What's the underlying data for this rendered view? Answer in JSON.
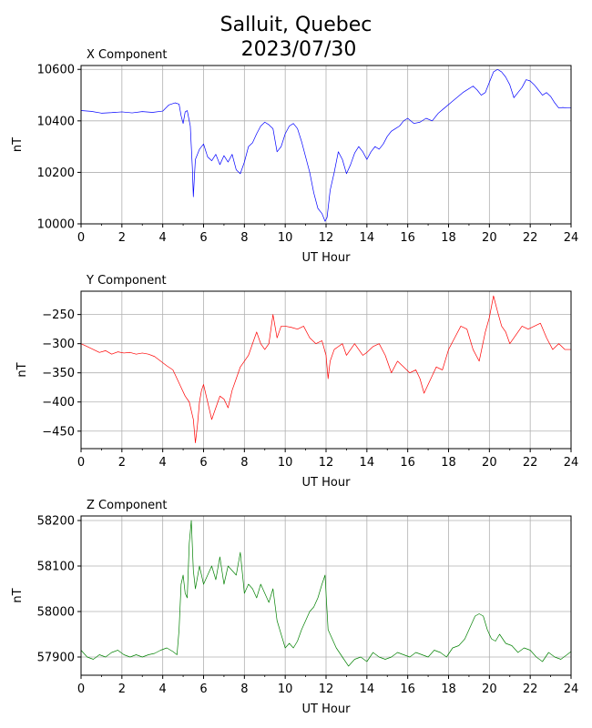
{
  "figure": {
    "title_line1": "Salluit, Quebec",
    "title_line2": "2023/07/30"
  },
  "chart_data": [
    {
      "type": "line",
      "title": "X Component",
      "xlabel": "UT Hour",
      "ylabel": "nT",
      "xlim": [
        0,
        24
      ],
      "ylim": [
        10000,
        10615
      ],
      "xticks": [
        0,
        2,
        4,
        6,
        8,
        10,
        12,
        14,
        16,
        18,
        20,
        22,
        24
      ],
      "yticks": [
        10000,
        10200,
        10400,
        10600
      ],
      "ytick_labels": [
        "10000",
        "10200",
        "10400",
        "10600"
      ],
      "grid": true,
      "color": "#0000ff",
      "x": [
        0,
        0.5,
        1,
        1.5,
        2,
        2.5,
        3,
        3.5,
        4,
        4.3,
        4.6,
        4.8,
        4.9,
        5.0,
        5.1,
        5.2,
        5.35,
        5.45,
        5.5,
        5.55,
        5.6,
        5.7,
        5.8,
        6.0,
        6.2,
        6.4,
        6.6,
        6.8,
        7.0,
        7.2,
        7.4,
        7.6,
        7.8,
        8.0,
        8.2,
        8.4,
        8.6,
        8.8,
        9.0,
        9.2,
        9.4,
        9.6,
        9.8,
        10.0,
        10.2,
        10.4,
        10.6,
        10.8,
        11.0,
        11.2,
        11.4,
        11.6,
        11.8,
        11.95,
        12.05,
        12.2,
        12.4,
        12.6,
        12.8,
        13.0,
        13.2,
        13.4,
        13.6,
        13.8,
        14.0,
        14.2,
        14.4,
        14.6,
        14.8,
        15.0,
        15.2,
        15.4,
        15.6,
        15.8,
        16.0,
        16.3,
        16.6,
        16.9,
        17.2,
        17.5,
        17.8,
        18.1,
        18.4,
        18.7,
        19.0,
        19.2,
        19.4,
        19.6,
        19.8,
        20.0,
        20.2,
        20.4,
        20.6,
        20.8,
        21.0,
        21.2,
        21.4,
        21.6,
        21.8,
        22.0,
        22.2,
        22.4,
        22.6,
        22.8,
        23.0,
        23.2,
        23.4,
        23.6,
        23.8,
        24.0
      ],
      "y": [
        10440,
        10437,
        10430,
        10432,
        10435,
        10431,
        10436,
        10433,
        10438,
        10462,
        10470,
        10465,
        10420,
        10390,
        10435,
        10440,
        10380,
        10220,
        10105,
        10180,
        10250,
        10270,
        10290,
        10310,
        10260,
        10245,
        10270,
        10230,
        10265,
        10240,
        10270,
        10210,
        10195,
        10240,
        10300,
        10315,
        10350,
        10380,
        10395,
        10385,
        10370,
        10280,
        10300,
        10350,
        10380,
        10390,
        10370,
        10320,
        10260,
        10200,
        10120,
        10060,
        10040,
        10010,
        10025,
        10130,
        10200,
        10280,
        10250,
        10195,
        10230,
        10275,
        10300,
        10280,
        10250,
        10280,
        10300,
        10290,
        10310,
        10340,
        10360,
        10370,
        10380,
        10400,
        10410,
        10390,
        10395,
        10410,
        10400,
        10430,
        10450,
        10470,
        10490,
        10510,
        10525,
        10535,
        10520,
        10500,
        10510,
        10550,
        10590,
        10600,
        10590,
        10570,
        10540,
        10490,
        10510,
        10530,
        10560,
        10555,
        10540,
        10520,
        10500,
        10510,
        10495,
        10470,
        10450,
        10452,
        10450,
        10450
      ]
    },
    {
      "type": "line",
      "title": "Y Component",
      "xlabel": "UT Hour",
      "ylabel": "nT",
      "xlim": [
        0,
        24
      ],
      "ylim": [
        -480,
        -210
      ],
      "xticks": [
        0,
        2,
        4,
        6,
        8,
        10,
        12,
        14,
        16,
        18,
        20,
        22,
        24
      ],
      "yticks": [
        -450,
        -400,
        -350,
        -300,
        -250
      ],
      "ytick_labels": [
        "−450",
        "−400",
        "−350",
        "−300",
        "−250"
      ],
      "grid": true,
      "color": "#ff0000",
      "x": [
        0,
        0.3,
        0.6,
        0.9,
        1.2,
        1.5,
        1.8,
        2.1,
        2.4,
        2.7,
        3.0,
        3.3,
        3.6,
        3.9,
        4.2,
        4.5,
        4.7,
        4.9,
        5.1,
        5.3,
        5.5,
        5.6,
        5.7,
        5.8,
        5.9,
        6.0,
        6.2,
        6.4,
        6.6,
        6.8,
        7.0,
        7.2,
        7.4,
        7.6,
        7.8,
        8.0,
        8.2,
        8.4,
        8.6,
        8.8,
        9.0,
        9.2,
        9.4,
        9.6,
        9.8,
        10.0,
        10.3,
        10.6,
        10.9,
        11.2,
        11.5,
        11.8,
        12.0,
        12.1,
        12.2,
        12.4,
        12.6,
        12.8,
        13.0,
        13.2,
        13.4,
        13.6,
        13.8,
        14.0,
        14.3,
        14.6,
        14.9,
        15.2,
        15.5,
        15.8,
        16.1,
        16.4,
        16.6,
        16.8,
        17.0,
        17.2,
        17.4,
        17.7,
        18.0,
        18.3,
        18.6,
        18.9,
        19.2,
        19.5,
        19.8,
        20.0,
        20.2,
        20.4,
        20.6,
        20.8,
        21.0,
        21.3,
        21.6,
        21.9,
        22.2,
        22.5,
        22.8,
        23.1,
        23.4,
        23.7,
        24.0
      ],
      "y": [
        -300,
        -305,
        -310,
        -315,
        -312,
        -318,
        -314,
        -316,
        -315,
        -318,
        -316,
        -318,
        -322,
        -330,
        -338,
        -345,
        -360,
        -375,
        -390,
        -400,
        -430,
        -470,
        -440,
        -400,
        -380,
        -370,
        -400,
        -430,
        -410,
        -390,
        -395,
        -410,
        -380,
        -360,
        -340,
        -330,
        -320,
        -300,
        -280,
        -300,
        -310,
        -300,
        -250,
        -290,
        -270,
        -270,
        -272,
        -275,
        -270,
        -290,
        -300,
        -295,
        -320,
        -360,
        -330,
        -310,
        -305,
        -300,
        -320,
        -310,
        -300,
        -310,
        -320,
        -315,
        -305,
        -300,
        -320,
        -350,
        -330,
        -340,
        -350,
        -345,
        -360,
        -385,
        -370,
        -355,
        -340,
        -345,
        -310,
        -290,
        -270,
        -275,
        -310,
        -330,
        -280,
        -255,
        -218,
        -245,
        -270,
        -280,
        -300,
        -285,
        -270,
        -275,
        -270,
        -265,
        -290,
        -310,
        -300,
        -310,
        -310
      ]
    },
    {
      "type": "line",
      "title": "Z Component",
      "xlabel": "UT Hour",
      "ylabel": "nT",
      "xlim": [
        0,
        24
      ],
      "ylim": [
        57860,
        58210
      ],
      "xticks": [
        0,
        2,
        4,
        6,
        8,
        10,
        12,
        14,
        16,
        18,
        20,
        22,
        24
      ],
      "yticks": [
        57900,
        58000,
        58100,
        58200
      ],
      "ytick_labels": [
        "57900",
        "58000",
        "58100",
        "58200"
      ],
      "grid": true,
      "color": "#008000",
      "x": [
        0,
        0.3,
        0.6,
        0.9,
        1.2,
        1.5,
        1.8,
        2.1,
        2.4,
        2.7,
        3.0,
        3.3,
        3.6,
        3.9,
        4.2,
        4.5,
        4.7,
        4.8,
        4.9,
        5.0,
        5.1,
        5.2,
        5.3,
        5.4,
        5.5,
        5.6,
        5.8,
        6.0,
        6.2,
        6.4,
        6.6,
        6.8,
        7.0,
        7.2,
        7.4,
        7.6,
        7.8,
        8.0,
        8.2,
        8.4,
        8.6,
        8.8,
        9.0,
        9.2,
        9.4,
        9.6,
        9.8,
        10.0,
        10.2,
        10.4,
        10.6,
        10.8,
        11.0,
        11.2,
        11.4,
        11.6,
        11.8,
        11.95,
        12.1,
        12.3,
        12.5,
        12.8,
        13.1,
        13.4,
        13.7,
        14.0,
        14.3,
        14.6,
        14.9,
        15.2,
        15.5,
        15.8,
        16.1,
        16.4,
        16.7,
        17.0,
        17.3,
        17.6,
        17.9,
        18.2,
        18.5,
        18.8,
        19.1,
        19.3,
        19.5,
        19.7,
        19.9,
        20.1,
        20.3,
        20.5,
        20.8,
        21.1,
        21.4,
        21.7,
        22.0,
        22.3,
        22.6,
        22.9,
        23.2,
        23.5,
        23.8,
        24.0
      ],
      "y": [
        57915,
        57900,
        57895,
        57905,
        57900,
        57910,
        57915,
        57905,
        57900,
        57905,
        57900,
        57905,
        57908,
        57915,
        57920,
        57912,
        57905,
        57960,
        58060,
        58080,
        58040,
        58030,
        58150,
        58200,
        58090,
        58050,
        58100,
        58060,
        58080,
        58100,
        58070,
        58120,
        58060,
        58100,
        58090,
        58080,
        58130,
        58040,
        58060,
        58050,
        58030,
        58060,
        58040,
        58020,
        58050,
        57980,
        57950,
        57920,
        57930,
        57920,
        57935,
        57960,
        57980,
        58000,
        58010,
        58030,
        58060,
        58080,
        57960,
        57940,
        57920,
        57900,
        57880,
        57895,
        57900,
        57890,
        57910,
        57900,
        57895,
        57900,
        57910,
        57905,
        57900,
        57910,
        57905,
        57900,
        57915,
        57910,
        57900,
        57920,
        57925,
        57940,
        57970,
        57990,
        57995,
        57990,
        57960,
        57940,
        57935,
        57950,
        57930,
        57925,
        57910,
        57920,
        57915,
        57900,
        57890,
        57910,
        57900,
        57895,
        57905,
        57912
      ]
    }
  ]
}
